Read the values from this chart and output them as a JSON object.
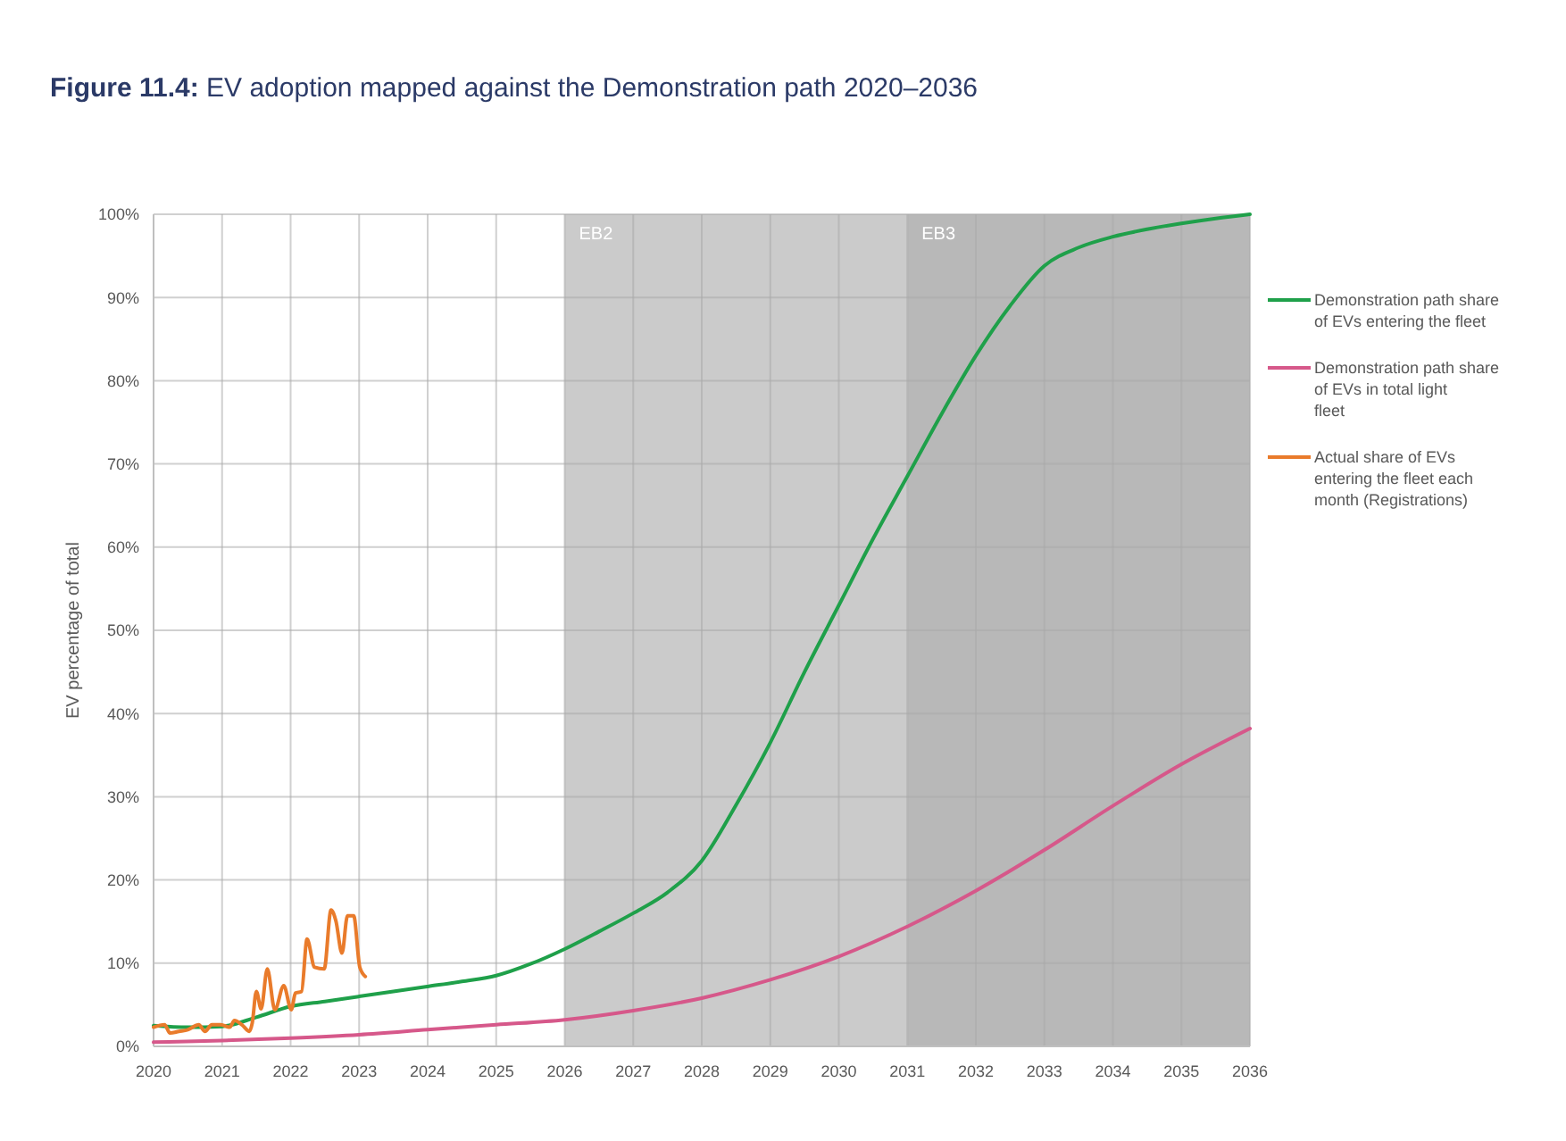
{
  "chart_data": {
    "type": "line",
    "title": "Figure 11.4: EV adoption mapped against the Demonstration path 2020–2036",
    "ylabel": "EV percentage of total",
    "xlim": [
      2020,
      2036
    ],
    "xticks": [
      2020,
      2021,
      2022,
      2023,
      2024,
      2025,
      2026,
      2027,
      2028,
      2029,
      2030,
      2031,
      2032,
      2033,
      2034,
      2035,
      2036
    ],
    "ylim": [
      0,
      100
    ],
    "yticks": [
      {
        "value": 0,
        "label": "0%"
      },
      {
        "value": 10,
        "label": "10%"
      },
      {
        "value": 20,
        "label": "20%"
      },
      {
        "value": 30,
        "label": "30%"
      },
      {
        "value": 40,
        "label": "40%"
      },
      {
        "value": 50,
        "label": "50%"
      },
      {
        "value": 60,
        "label": "60%"
      },
      {
        "value": 70,
        "label": "70%"
      },
      {
        "value": 80,
        "label": "80%"
      },
      {
        "value": 90,
        "label": "90%"
      },
      {
        "value": 100,
        "label": "100%"
      }
    ],
    "grid": true,
    "legend": "right",
    "line_style": "solid",
    "bands": [
      {
        "axis": "x",
        "from": 2026,
        "to": 2031,
        "label": "EB2",
        "color": "#cbcbcb"
      },
      {
        "axis": "x",
        "from": 2031,
        "to": 2036,
        "label": "EB3",
        "color": "#b8b8b8"
      }
    ],
    "series": [
      {
        "name": "Demonstration path share of EVs entering the fleet",
        "color": "#1fa04a",
        "x": [
          2020,
          2020.5,
          2021,
          2021.5,
          2022,
          2022.5,
          2023,
          2023.5,
          2024,
          2024.5,
          2025,
          2025.5,
          2026,
          2026.5,
          2027,
          2027.5,
          2028,
          2028.5,
          2029,
          2029.5,
          2030,
          2030.5,
          2031,
          2031.5,
          2032,
          2032.5,
          2033,
          2033.5,
          2034,
          2034.5,
          2035,
          2035.5,
          2036
        ],
        "values": [
          2.5,
          2.3,
          2.4,
          3.5,
          4.8,
          5.4,
          6,
          6.6,
          7.2,
          7.8,
          8.5,
          9.9,
          11.7,
          13.8,
          16,
          18.5,
          22.3,
          29,
          36.5,
          45,
          53,
          61,
          68.5,
          76,
          83,
          89,
          93.8,
          96,
          97.3,
          98.2,
          98.9,
          99.5,
          100
        ]
      },
      {
        "name": "Demonstration path share of EVs in total light fleet",
        "color": "#d6588a",
        "x": [
          2020,
          2021,
          2022,
          2023,
          2024,
          2025,
          2026,
          2027,
          2028,
          2029,
          2030,
          2031,
          2032,
          2033,
          2034,
          2035,
          2036
        ],
        "values": [
          0.5,
          0.7,
          1,
          1.4,
          2,
          2.6,
          3.2,
          4.3,
          5.8,
          8,
          10.8,
          14.4,
          18.7,
          23.6,
          28.9,
          33.9,
          38.2
        ]
      },
      {
        "name": "Actual share of EVs entering the fleet each month (Registrations)",
        "color": "#e97b2b",
        "x": [
          2020.0,
          2020.16,
          2020.24,
          2020.37,
          2020.5,
          2020.66,
          2020.75,
          2020.85,
          2020.98,
          2021.11,
          2021.18,
          2021.29,
          2021.4,
          2021.44,
          2021.5,
          2021.57,
          2021.66,
          2021.77,
          2021.9,
          2022.01,
          2022.07,
          2022.16,
          2022.24,
          2022.35,
          2022.49,
          2022.59,
          2022.66,
          2022.75,
          2022.83,
          2022.92,
          2023.01,
          2023.09
        ],
        "values": [
          2.3,
          2.6,
          1.6,
          1.8,
          2.0,
          2.6,
          1.8,
          2.6,
          2.6,
          2.3,
          3.1,
          2.6,
          1.8,
          2.8,
          6.6,
          4.5,
          9.3,
          4.4,
          7.3,
          4.4,
          6.4,
          6.6,
          12.9,
          9.5,
          9.3,
          16.4,
          15.1,
          11.2,
          15.7,
          15.7,
          9.5,
          8.4
        ]
      }
    ]
  }
}
